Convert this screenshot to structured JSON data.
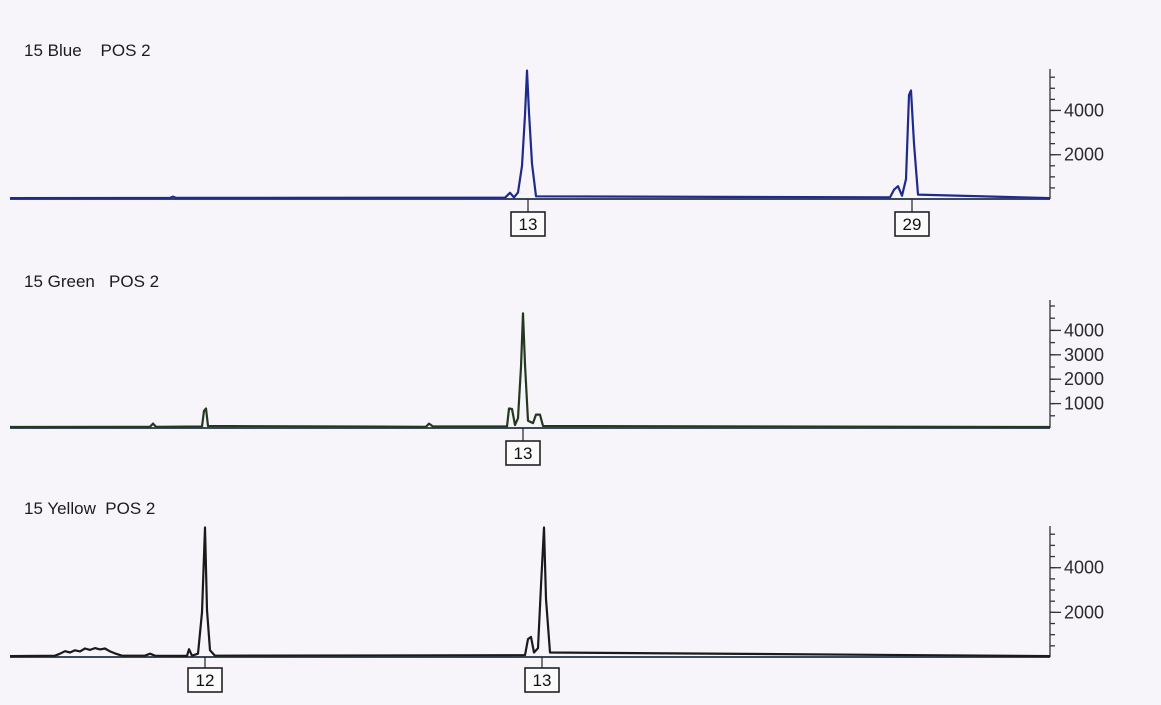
{
  "chart_data": [
    {
      "type": "line",
      "title": "15 Blue    POS 2",
      "color": "#1e2a8c",
      "x_range": [
        0,
        1040
      ],
      "ylim": [
        0,
        5600
      ],
      "y_ticks": [
        {
          "value": 2000,
          "label": "2000"
        },
        {
          "value": 4000,
          "label": "4000"
        }
      ],
      "series": [
        {
          "points": [
            [
              0,
              40
            ],
            [
              160,
              50
            ],
            [
              163,
              110
            ],
            [
              166,
              50
            ],
            [
              495,
              60
            ],
            [
              500,
              280
            ],
            [
              504,
              70
            ],
            [
              508,
              300
            ],
            [
              512,
              1500
            ],
            [
              515,
              3800
            ],
            [
              517,
              5800
            ],
            [
              519,
              3900
            ],
            [
              522,
              1600
            ],
            [
              526,
              120
            ],
            [
              880,
              70
            ],
            [
              884,
              420
            ],
            [
              888,
              580
            ],
            [
              892,
              150
            ],
            [
              896,
              900
            ],
            [
              899,
              4700
            ],
            [
              901,
              4900
            ],
            [
              904,
              2500
            ],
            [
              908,
              200
            ],
            [
              1040,
              40
            ]
          ]
        }
      ],
      "alleles": [
        {
          "x": 518,
          "label": "13"
        },
        {
          "x": 902,
          "label": "29"
        }
      ]
    },
    {
      "type": "line",
      "title": "15 Green   POS 2",
      "color": "#243820",
      "x_range": [
        0,
        1040
      ],
      "ylim": [
        0,
        5000
      ],
      "y_ticks": [
        {
          "value": 1000,
          "label": "1000"
        },
        {
          "value": 2000,
          "label": "2000"
        },
        {
          "value": 3000,
          "label": "3000"
        },
        {
          "value": 4000,
          "label": "4000"
        }
      ],
      "series": [
        {
          "points": [
            [
              0,
              40
            ],
            [
              140,
              50
            ],
            [
              143,
              180
            ],
            [
              146,
              50
            ],
            [
              192,
              60
            ],
            [
              194,
              700
            ],
            [
              196,
              800
            ],
            [
              198,
              80
            ],
            [
              416,
              50
            ],
            [
              419,
              180
            ],
            [
              423,
              60
            ],
            [
              497,
              60
            ],
            [
              499,
              800
            ],
            [
              502,
              780
            ],
            [
              505,
              120
            ],
            [
              508,
              400
            ],
            [
              511,
              2500
            ],
            [
              513,
              4700
            ],
            [
              515,
              2600
            ],
            [
              518,
              300
            ],
            [
              523,
              200
            ],
            [
              526,
              550
            ],
            [
              530,
              550
            ],
            [
              533,
              80
            ],
            [
              1040,
              40
            ]
          ]
        }
      ],
      "alleles": [
        {
          "x": 513,
          "label": "13"
        }
      ]
    },
    {
      "type": "line",
      "title": "15 Yellow  POS 2",
      "color": "#1a1a1a",
      "x_range": [
        0,
        1040
      ],
      "ylim": [
        0,
        5600
      ],
      "y_ticks": [
        {
          "value": 2000,
          "label": "2000"
        },
        {
          "value": 4000,
          "label": "4000"
        }
      ],
      "series": [
        {
          "points": [
            [
              0,
              40
            ],
            [
              45,
              60
            ],
            [
              50,
              150
            ],
            [
              55,
              260
            ],
            [
              60,
              200
            ],
            [
              65,
              300
            ],
            [
              70,
              250
            ],
            [
              75,
              380
            ],
            [
              80,
              320
            ],
            [
              85,
              400
            ],
            [
              90,
              340
            ],
            [
              95,
              380
            ],
            [
              100,
              250
            ],
            [
              105,
              160
            ],
            [
              112,
              60
            ],
            [
              135,
              60
            ],
            [
              140,
              150
            ],
            [
              145,
              60
            ],
            [
              177,
              50
            ],
            [
              179,
              350
            ],
            [
              182,
              60
            ],
            [
              188,
              150
            ],
            [
              192,
              2000
            ],
            [
              195,
              5800
            ],
            [
              197,
              2100
            ],
            [
              200,
              300
            ],
            [
              205,
              60
            ],
            [
              515,
              80
            ],
            [
              518,
              800
            ],
            [
              521,
              900
            ],
            [
              524,
              200
            ],
            [
              528,
              400
            ],
            [
              531,
              3200
            ],
            [
              534,
              5800
            ],
            [
              536,
              2600
            ],
            [
              540,
              200
            ],
            [
              1040,
              40
            ]
          ]
        }
      ],
      "alleles": [
        {
          "x": 195,
          "label": "12"
        },
        {
          "x": 532,
          "label": "13"
        }
      ]
    }
  ]
}
